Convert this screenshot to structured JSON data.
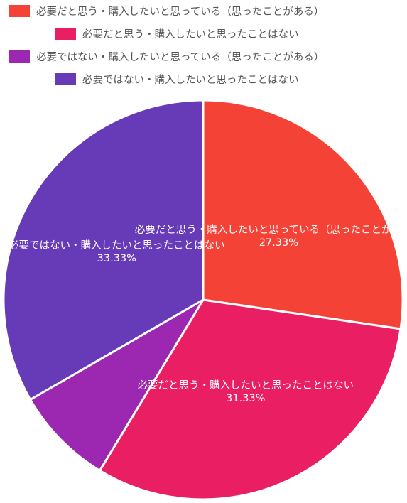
{
  "chart_data": {
    "type": "pie",
    "title": "",
    "legend_position": "top",
    "slices": [
      {
        "label": "必要だと思う・購入したいと思っている（思ったことがある）",
        "value": 27.33,
        "value_label": "27.33%",
        "color": "#f44336"
      },
      {
        "label": "必要だと思う・購入したいと思ったことはない",
        "value": 31.33,
        "value_label": "31.33%",
        "color": "#e91e63"
      },
      {
        "label": "必要ではない・購入したいと思っている（思ったことがある）",
        "value": 8.0,
        "value_label": "",
        "color": "#9c27b0"
      },
      {
        "label": "必要ではない・購入したいと思ったことはない",
        "value": 33.33,
        "value_label": "33.33%",
        "color": "#673ab7"
      }
    ]
  }
}
